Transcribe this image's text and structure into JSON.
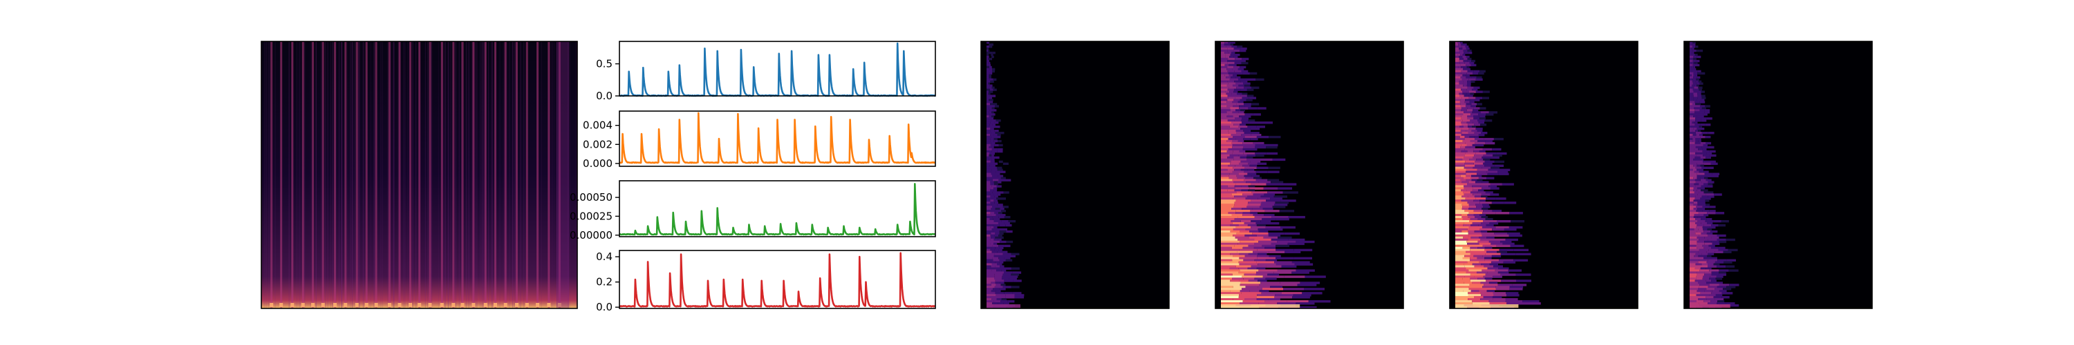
{
  "chart_data": [
    {
      "type": "heatmap",
      "colormap": "magma",
      "title": "",
      "xlabel": "",
      "ylabel": "",
      "description_values": {
        "bright_columns": 28,
        "low_band_intensity": 0.9
      }
    },
    {
      "type": "line",
      "color": "#1f77b4",
      "xlim": [
        0,
        100
      ],
      "ylim": [
        0,
        0.85
      ],
      "y_ticks": [
        "0.0",
        "0.5"
      ],
      "series": [
        {
          "peaks_x": [
            3,
            7.5,
            15.5,
            19,
            27,
            31,
            38.5,
            42.5,
            50.5,
            54.5,
            63,
            66.5,
            74,
            77.5,
            88,
            90
          ],
          "peaks_y": [
            0.38,
            0.44,
            0.38,
            0.48,
            0.74,
            0.7,
            0.72,
            0.45,
            0.66,
            0.7,
            0.64,
            0.64,
            0.42,
            0.52,
            0.82,
            0.7
          ]
        }
      ]
    },
    {
      "type": "line",
      "color": "#ff7f0e",
      "xlim": [
        0,
        100
      ],
      "ylim": [
        -0.0003,
        0.0055
      ],
      "y_ticks": [
        "0.000",
        "0.002",
        "0.004"
      ],
      "series": [
        {
          "peaks_x": [
            1,
            7,
            12.5,
            19,
            25,
            31.5,
            37.5,
            44,
            50,
            55.5,
            62,
            67,
            73,
            79,
            85.5,
            91.5,
            92.5
          ],
          "peaks_y": [
            0.0031,
            0.0031,
            0.0036,
            0.0046,
            0.0053,
            0.0026,
            0.0052,
            0.0037,
            0.0046,
            0.0046,
            0.0039,
            0.0049,
            0.0046,
            0.0025,
            0.0029,
            0.0041,
            0.0011
          ]
        }
      ]
    },
    {
      "type": "line",
      "color": "#2ca02c",
      "xlim": [
        0,
        100
      ],
      "ylim": [
        -2e-05,
        0.00072
      ],
      "y_ticks": [
        "0.00000",
        "0.00025",
        "0.00050"
      ],
      "series": [
        {
          "peaks_x": [
            5,
            9,
            12,
            17,
            21,
            26,
            31,
            36,
            41,
            46,
            51,
            56,
            61,
            66,
            71,
            76,
            81,
            88,
            92,
            93.5
          ],
          "peaks_y": [
            6e-05,
            0.00012,
            0.00024,
            0.0003,
            0.00018,
            0.00032,
            0.00036,
            0.0001,
            0.00014,
            0.00012,
            0.00015,
            0.00016,
            0.00014,
            0.0001,
            0.00012,
            0.0001,
            8e-05,
            0.00014,
            0.00018,
            0.00068
          ]
        }
      ]
    },
    {
      "type": "line",
      "color": "#d62728",
      "xlim": [
        0,
        100
      ],
      "ylim": [
        -0.01,
        0.45
      ],
      "y_ticks": [
        "0.0",
        "0.2",
        "0.4"
      ],
      "series": [
        {
          "peaks_x": [
            5,
            9,
            16,
            19.5,
            28,
            33,
            39,
            45,
            52,
            56.5,
            63.5,
            66.5,
            76,
            78,
            89
          ],
          "peaks_y": [
            0.22,
            0.36,
            0.27,
            0.42,
            0.21,
            0.22,
            0.22,
            0.21,
            0.21,
            0.18,
            0.23,
            0.42,
            0.4,
            0.2,
            0.43
          ]
        }
      ]
    },
    {
      "type": "heatmap",
      "colormap": "magma",
      "intensity": 0.35,
      "spread": 0.15
    },
    {
      "type": "heatmap",
      "colormap": "magma",
      "intensity": 0.95,
      "spread": 0.35
    },
    {
      "type": "heatmap",
      "colormap": "magma",
      "intensity": 1.0,
      "spread": 0.28
    },
    {
      "type": "heatmap",
      "colormap": "magma",
      "intensity": 0.55,
      "spread": 0.18
    }
  ]
}
